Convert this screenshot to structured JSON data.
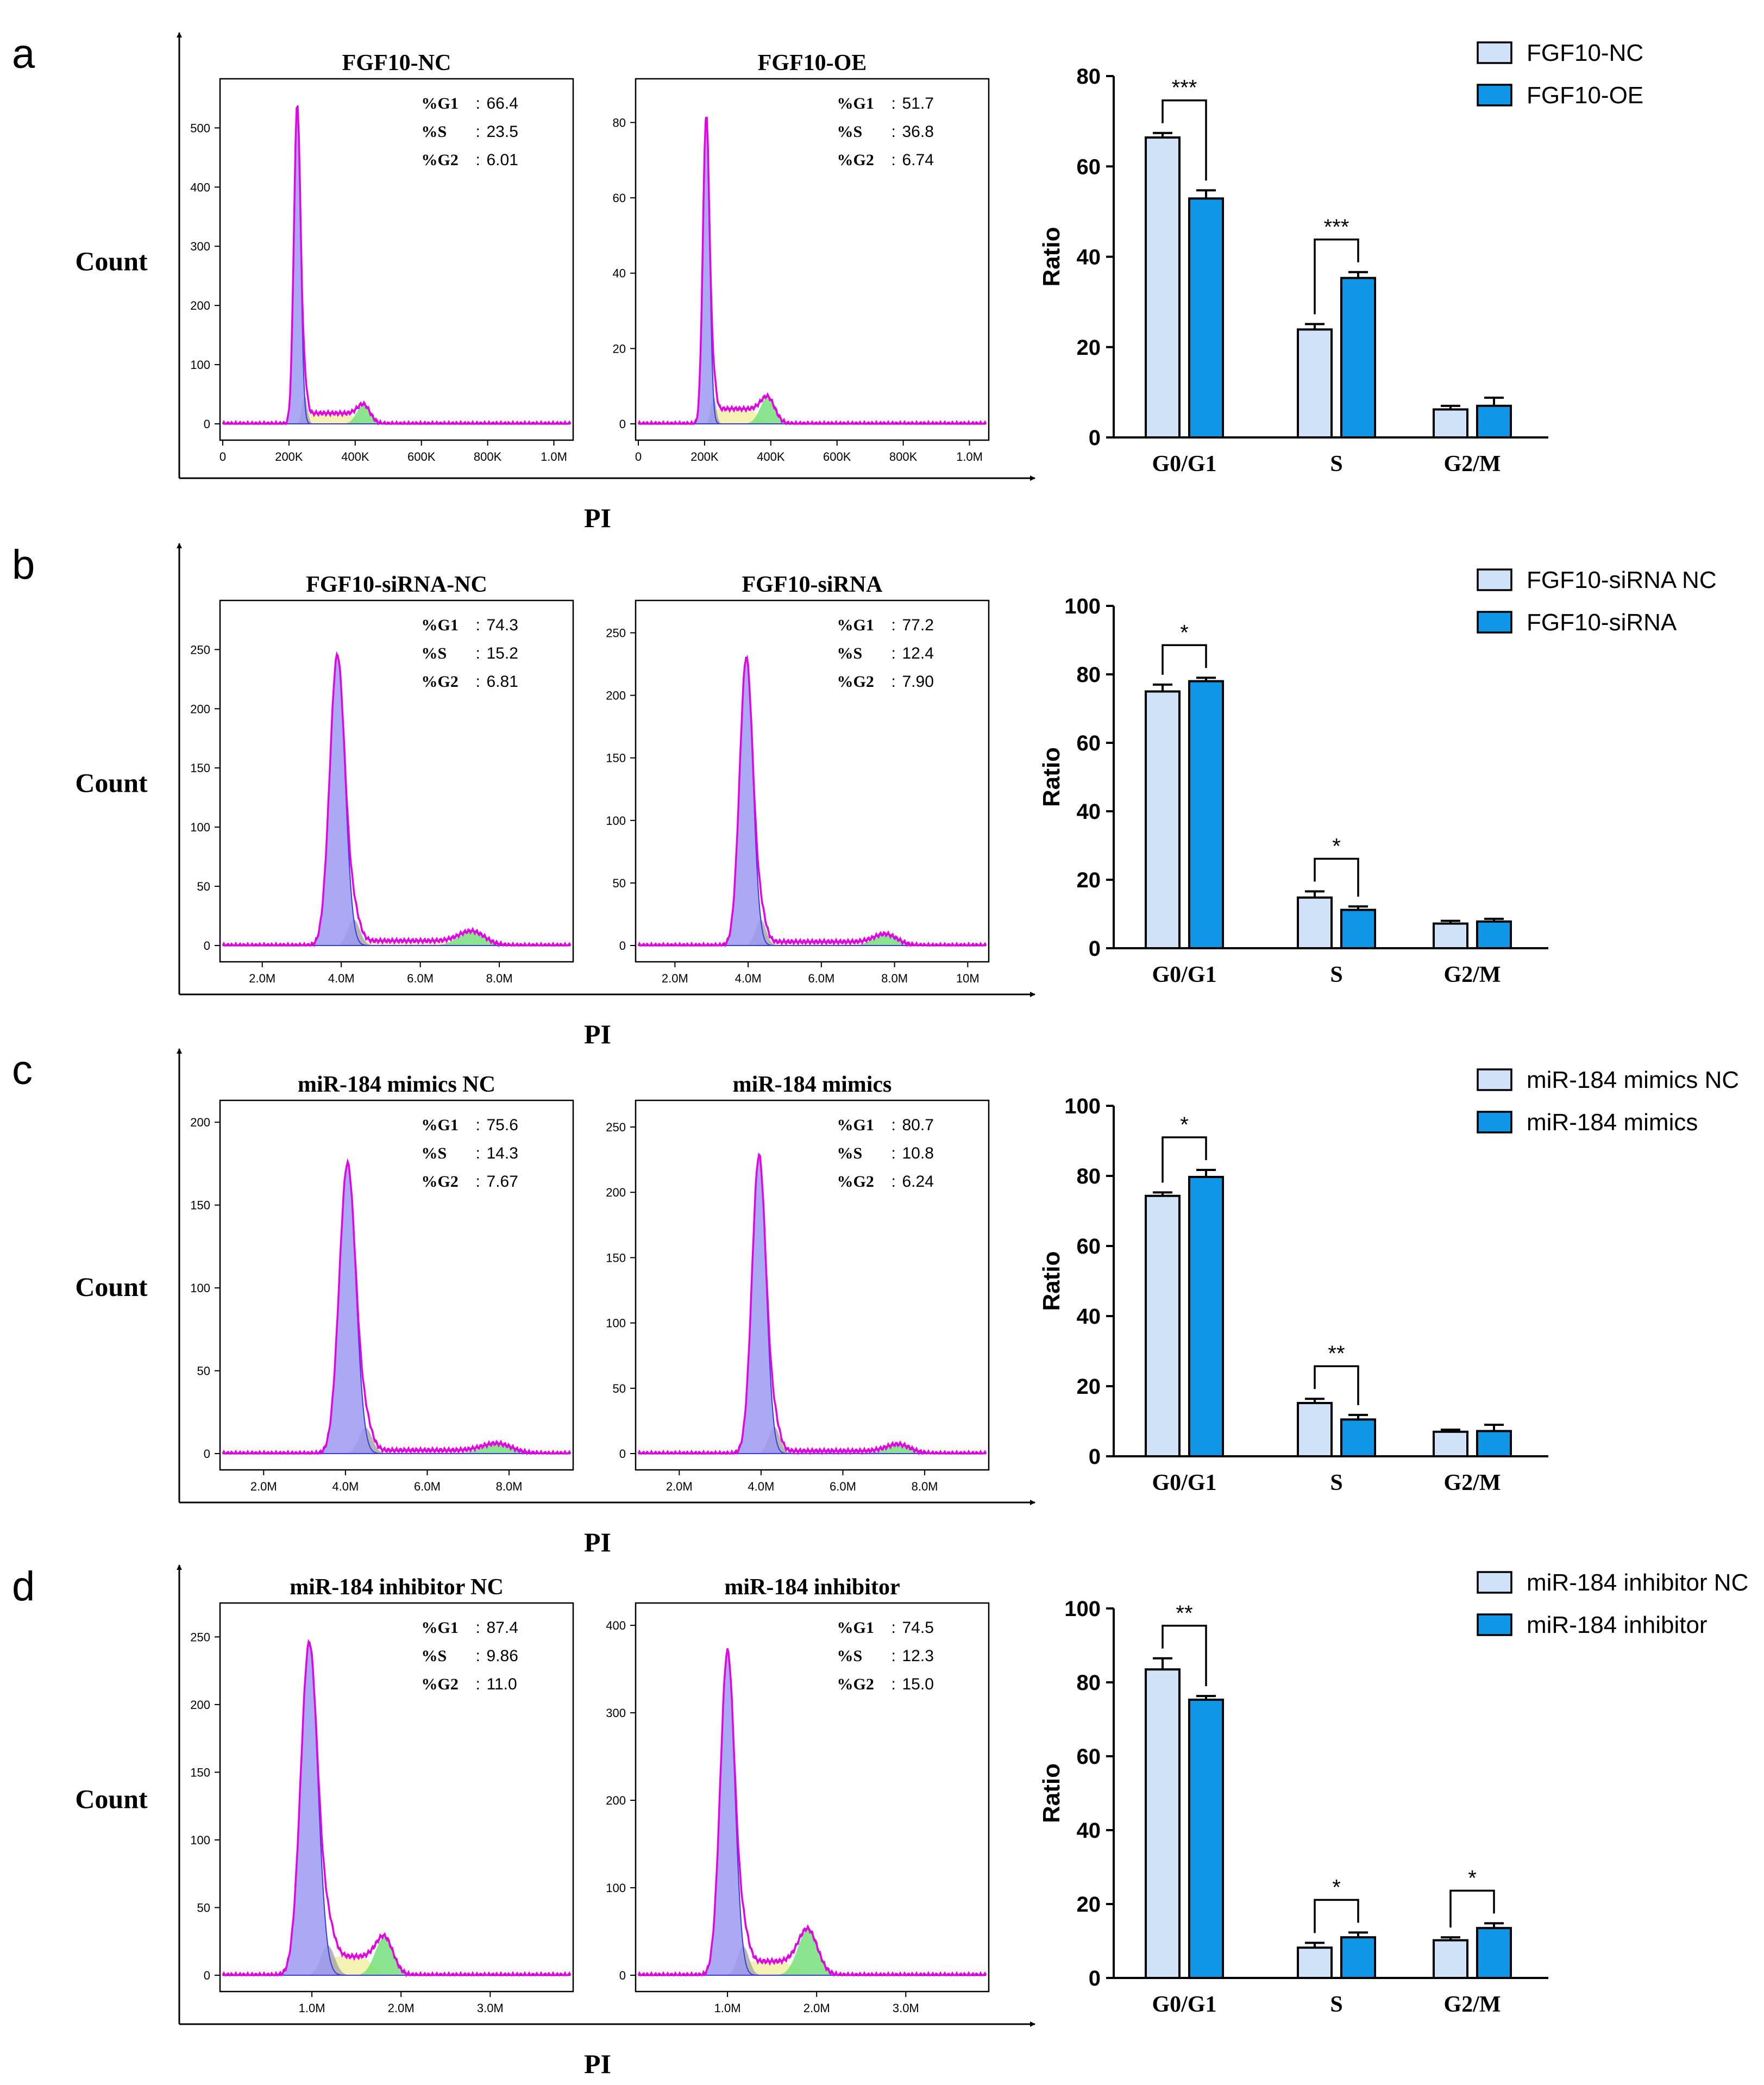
{
  "colors": {
    "nc_fill": "#cfe2f7",
    "trt_fill": "#0f96e6",
    "trace": "#e600e6",
    "envelope": "#1a1a1a",
    "g1_area": "#9a9af2",
    "g1_line": "#3b3bd9",
    "s_area": "#f2f0a6",
    "g2_area": "#74e07a",
    "debris_area": "#a8a8a8"
  },
  "chart_data": [
    {
      "panel": "a",
      "type": "histogram",
      "y_axis_label": "Count",
      "x_axis_label": "PI",
      "histograms": [
        {
          "title": "FGF10-NC",
          "yticks": [
            "0",
            "100",
            "200",
            "300",
            "400",
            "500"
          ],
          "ymax": 560,
          "xticks": [
            "0",
            "200K",
            "400K",
            "600K",
            "800K",
            "1.0M"
          ],
          "xrange": [
            0,
            1050000
          ],
          "stats": [
            {
              "label": "%G1",
              "value": "66.4"
            },
            {
              "label": "%S",
              "value": "23.5"
            },
            {
              "label": "%G2",
              "value": "6.01"
            }
          ],
          "g1_mean": 225000,
          "g1_sd": 10000,
          "g1_peak": 540,
          "g2_mean": 425000,
          "g2_sd": 20000,
          "g2_peak": 32,
          "s_level": 18
        },
        {
          "title": "FGF10-OE",
          "yticks": [
            "0",
            "20",
            "40",
            "60",
            "80"
          ],
          "ymax": 88,
          "xticks": [
            "0",
            "200K",
            "400K",
            "600K",
            "800K",
            "1.0M"
          ],
          "xrange": [
            0,
            1050000
          ],
          "stats": [
            {
              "label": "%G1",
              "value": "51.7"
            },
            {
              "label": "%S",
              "value": "36.8"
            },
            {
              "label": "%G2",
              "value": "6.74"
            }
          ],
          "g1_mean": 205000,
          "g1_sd": 10000,
          "g1_peak": 82,
          "g2_mean": 390000,
          "g2_sd": 22000,
          "g2_peak": 7,
          "s_level": 4
        }
      ],
      "bar": {
        "type": "bar",
        "ylabel": "Ratio",
        "ylim": [
          0,
          80
        ],
        "yticks": [
          0,
          20,
          40,
          60,
          80
        ],
        "categories": [
          "G0/G1",
          "S",
          "G2/M"
        ],
        "series": [
          {
            "name": "FGF10-NC",
            "values": [
              66.4,
              23.9,
              6.2
            ],
            "errors": [
              1.0,
              1.2,
              0.8
            ]
          },
          {
            "name": "FGF10-OE",
            "values": [
              52.9,
              35.3,
              7.0
            ],
            "errors": [
              1.8,
              1.3,
              1.8
            ]
          }
        ],
        "significance": [
          {
            "category": 0,
            "label": "***"
          },
          {
            "category": 1,
            "label": "***"
          }
        ]
      }
    },
    {
      "panel": "b",
      "type": "histogram",
      "y_axis_label": "Count",
      "x_axis_label": "PI",
      "histograms": [
        {
          "title": "FGF10-siRNA-NC",
          "yticks": [
            "0",
            "50",
            "100",
            "150",
            "200",
            "250"
          ],
          "ymax": 280,
          "xticks": [
            "2.0M",
            "4.0M",
            "6.0M",
            "8.0M"
          ],
          "xrange": [
            1000000,
            9800000
          ],
          "stats": [
            {
              "label": "%G1",
              "value": "74.3"
            },
            {
              "label": "%S",
              "value": "15.2"
            },
            {
              "label": "%G2",
              "value": "6.81"
            }
          ],
          "g1_mean": 3900000,
          "g1_sd": 190000,
          "g1_peak": 245,
          "g2_mean": 7300000,
          "g2_sd": 330000,
          "g2_peak": 12,
          "s_level": 4
        },
        {
          "title": "FGF10-siRNA",
          "yticks": [
            "0",
            "50",
            "100",
            "150",
            "200",
            "250"
          ],
          "ymax": 265,
          "xticks": [
            "2.0M",
            "4.0M",
            "6.0M",
            "8.0M",
            "10M"
          ],
          "xrange": [
            1000000,
            10500000
          ],
          "stats": [
            {
              "label": "%G1",
              "value": "77.2"
            },
            {
              "label": "%S",
              "value": "12.4"
            },
            {
              "label": "%G2",
              "value": "7.90"
            }
          ],
          "g1_mean": 3950000,
          "g1_sd": 180000,
          "g1_peak": 230,
          "g2_mean": 7750000,
          "g2_sd": 320000,
          "g2_peak": 9,
          "s_level": 3
        }
      ],
      "bar": {
        "type": "bar",
        "ylabel": "Ratio",
        "ylim": [
          0,
          100
        ],
        "yticks": [
          0,
          20,
          40,
          60,
          80,
          100
        ],
        "categories": [
          "G0/G1",
          "S",
          "G2/M"
        ],
        "series": [
          {
            "name": "FGF10-siRNA NC",
            "values": [
              75.0,
              14.8,
              7.2
            ],
            "errors": [
              2.0,
              1.8,
              0.8
            ]
          },
          {
            "name": "FGF10-siRNA",
            "values": [
              78.0,
              11.2,
              7.8
            ],
            "errors": [
              1.0,
              1.0,
              0.8
            ]
          }
        ],
        "significance": [
          {
            "category": 0,
            "label": "*"
          },
          {
            "category": 1,
            "label": "*"
          }
        ]
      }
    },
    {
      "panel": "c",
      "type": "histogram",
      "y_axis_label": "Count",
      "x_axis_label": "PI",
      "histograms": [
        {
          "title": "miR-184 mimics NC",
          "yticks": [
            "0",
            "50",
            "100",
            "150",
            "200"
          ],
          "ymax": 205,
          "xticks": [
            "2.0M",
            "4.0M",
            "6.0M",
            "8.0M"
          ],
          "xrange": [
            1000000,
            9500000
          ],
          "stats": [
            {
              "label": "%G1",
              "value": "75.6"
            },
            {
              "label": "%S",
              "value": "14.3"
            },
            {
              "label": "%G2",
              "value": "7.67"
            }
          ],
          "g1_mean": 4050000,
          "g1_sd": 200000,
          "g1_peak": 175,
          "g2_mean": 7700000,
          "g2_sd": 370000,
          "g2_peak": 6,
          "s_level": 2
        },
        {
          "title": "miR-184 mimics",
          "yticks": [
            "0",
            "50",
            "100",
            "150",
            "200",
            "250"
          ],
          "ymax": 260,
          "xticks": [
            "2.0M",
            "4.0M",
            "6.0M",
            "8.0M"
          ],
          "xrange": [
            1000000,
            9500000
          ],
          "stats": [
            {
              "label": "%G1",
              "value": "80.7"
            },
            {
              "label": "%S",
              "value": "10.8"
            },
            {
              "label": "%G2",
              "value": "6.24"
            }
          ],
          "g1_mean": 3950000,
          "g1_sd": 170000,
          "g1_peak": 228,
          "g2_mean": 7350000,
          "g2_sd": 300000,
          "g2_peak": 7,
          "s_level": 2
        }
      ],
      "bar": {
        "type": "bar",
        "ylabel": "Ratio",
        "ylim": [
          0,
          100
        ],
        "yticks": [
          0,
          20,
          40,
          60,
          80,
          100
        ],
        "categories": [
          "G0/G1",
          "S",
          "G2/M"
        ],
        "series": [
          {
            "name": "miR-184 mimics NC",
            "values": [
              74.3,
              15.2,
              7.0
            ],
            "errors": [
              1.0,
              1.2,
              0.6
            ]
          },
          {
            "name": "miR-184 mimics",
            "values": [
              79.7,
              10.5,
              7.2
            ],
            "errors": [
              2.0,
              1.3,
              1.8
            ]
          }
        ],
        "significance": [
          {
            "category": 0,
            "label": "*"
          },
          {
            "category": 1,
            "label": "**"
          }
        ]
      }
    },
    {
      "panel": "d",
      "type": "histogram",
      "y_axis_label": "Count",
      "x_axis_label": "PI",
      "histograms": [
        {
          "title": "miR-184 inhibitor NC",
          "yticks": [
            "0",
            "50",
            "100",
            "150",
            "200",
            "250"
          ],
          "ymax": 265,
          "xticks": [
            "1.0M",
            "2.0M",
            "3.0M"
          ],
          "xrange": [
            0,
            3900000
          ],
          "stats": [
            {
              "label": "%G1",
              "value": "87.4"
            },
            {
              "label": "%S",
              "value": "9.86"
            },
            {
              "label": "%G2",
              "value": "11.0"
            }
          ],
          "g1_mean": 970000,
          "g1_sd": 95000,
          "g1_peak": 245,
          "g2_mean": 1810000,
          "g2_sd": 100000,
          "g2_peak": 28,
          "s_level": 14
        },
        {
          "title": "miR-184 inhibitor",
          "yticks": [
            "0",
            "100",
            "200",
            "300",
            "400"
          ],
          "ymax": 410,
          "xticks": [
            "1.0M",
            "2.0M",
            "3.0M"
          ],
          "xrange": [
            0,
            3900000
          ],
          "stats": [
            {
              "label": "%G1",
              "value": "74.5"
            },
            {
              "label": "%S",
              "value": "12.3"
            },
            {
              "label": "%G2",
              "value": "15.0"
            }
          ],
          "g1_mean": 1000000,
          "g1_sd": 80000,
          "g1_peak": 370,
          "g2_mean": 1900000,
          "g2_sd": 110000,
          "g2_peak": 52,
          "s_level": 16
        }
      ],
      "bar": {
        "type": "bar",
        "ylabel": "Ratio",
        "ylim": [
          0,
          100
        ],
        "yticks": [
          0,
          20,
          40,
          60,
          80,
          100
        ],
        "categories": [
          "G0/G1",
          "S",
          "G2/M"
        ],
        "series": [
          {
            "name": "miR-184 inhibitor  NC",
            "values": [
              83.5,
              8.2,
              10.2
            ],
            "errors": [
              3.0,
              1.3,
              0.8
            ]
          },
          {
            "name": "miR-184 inhibitor",
            "values": [
              75.3,
              11.0,
              13.5
            ],
            "errors": [
              1.0,
              1.3,
              1.3
            ]
          }
        ],
        "significance": [
          {
            "category": 0,
            "label": "**"
          },
          {
            "category": 1,
            "label": "*"
          },
          {
            "category": 2,
            "label": "*"
          }
        ]
      }
    }
  ]
}
